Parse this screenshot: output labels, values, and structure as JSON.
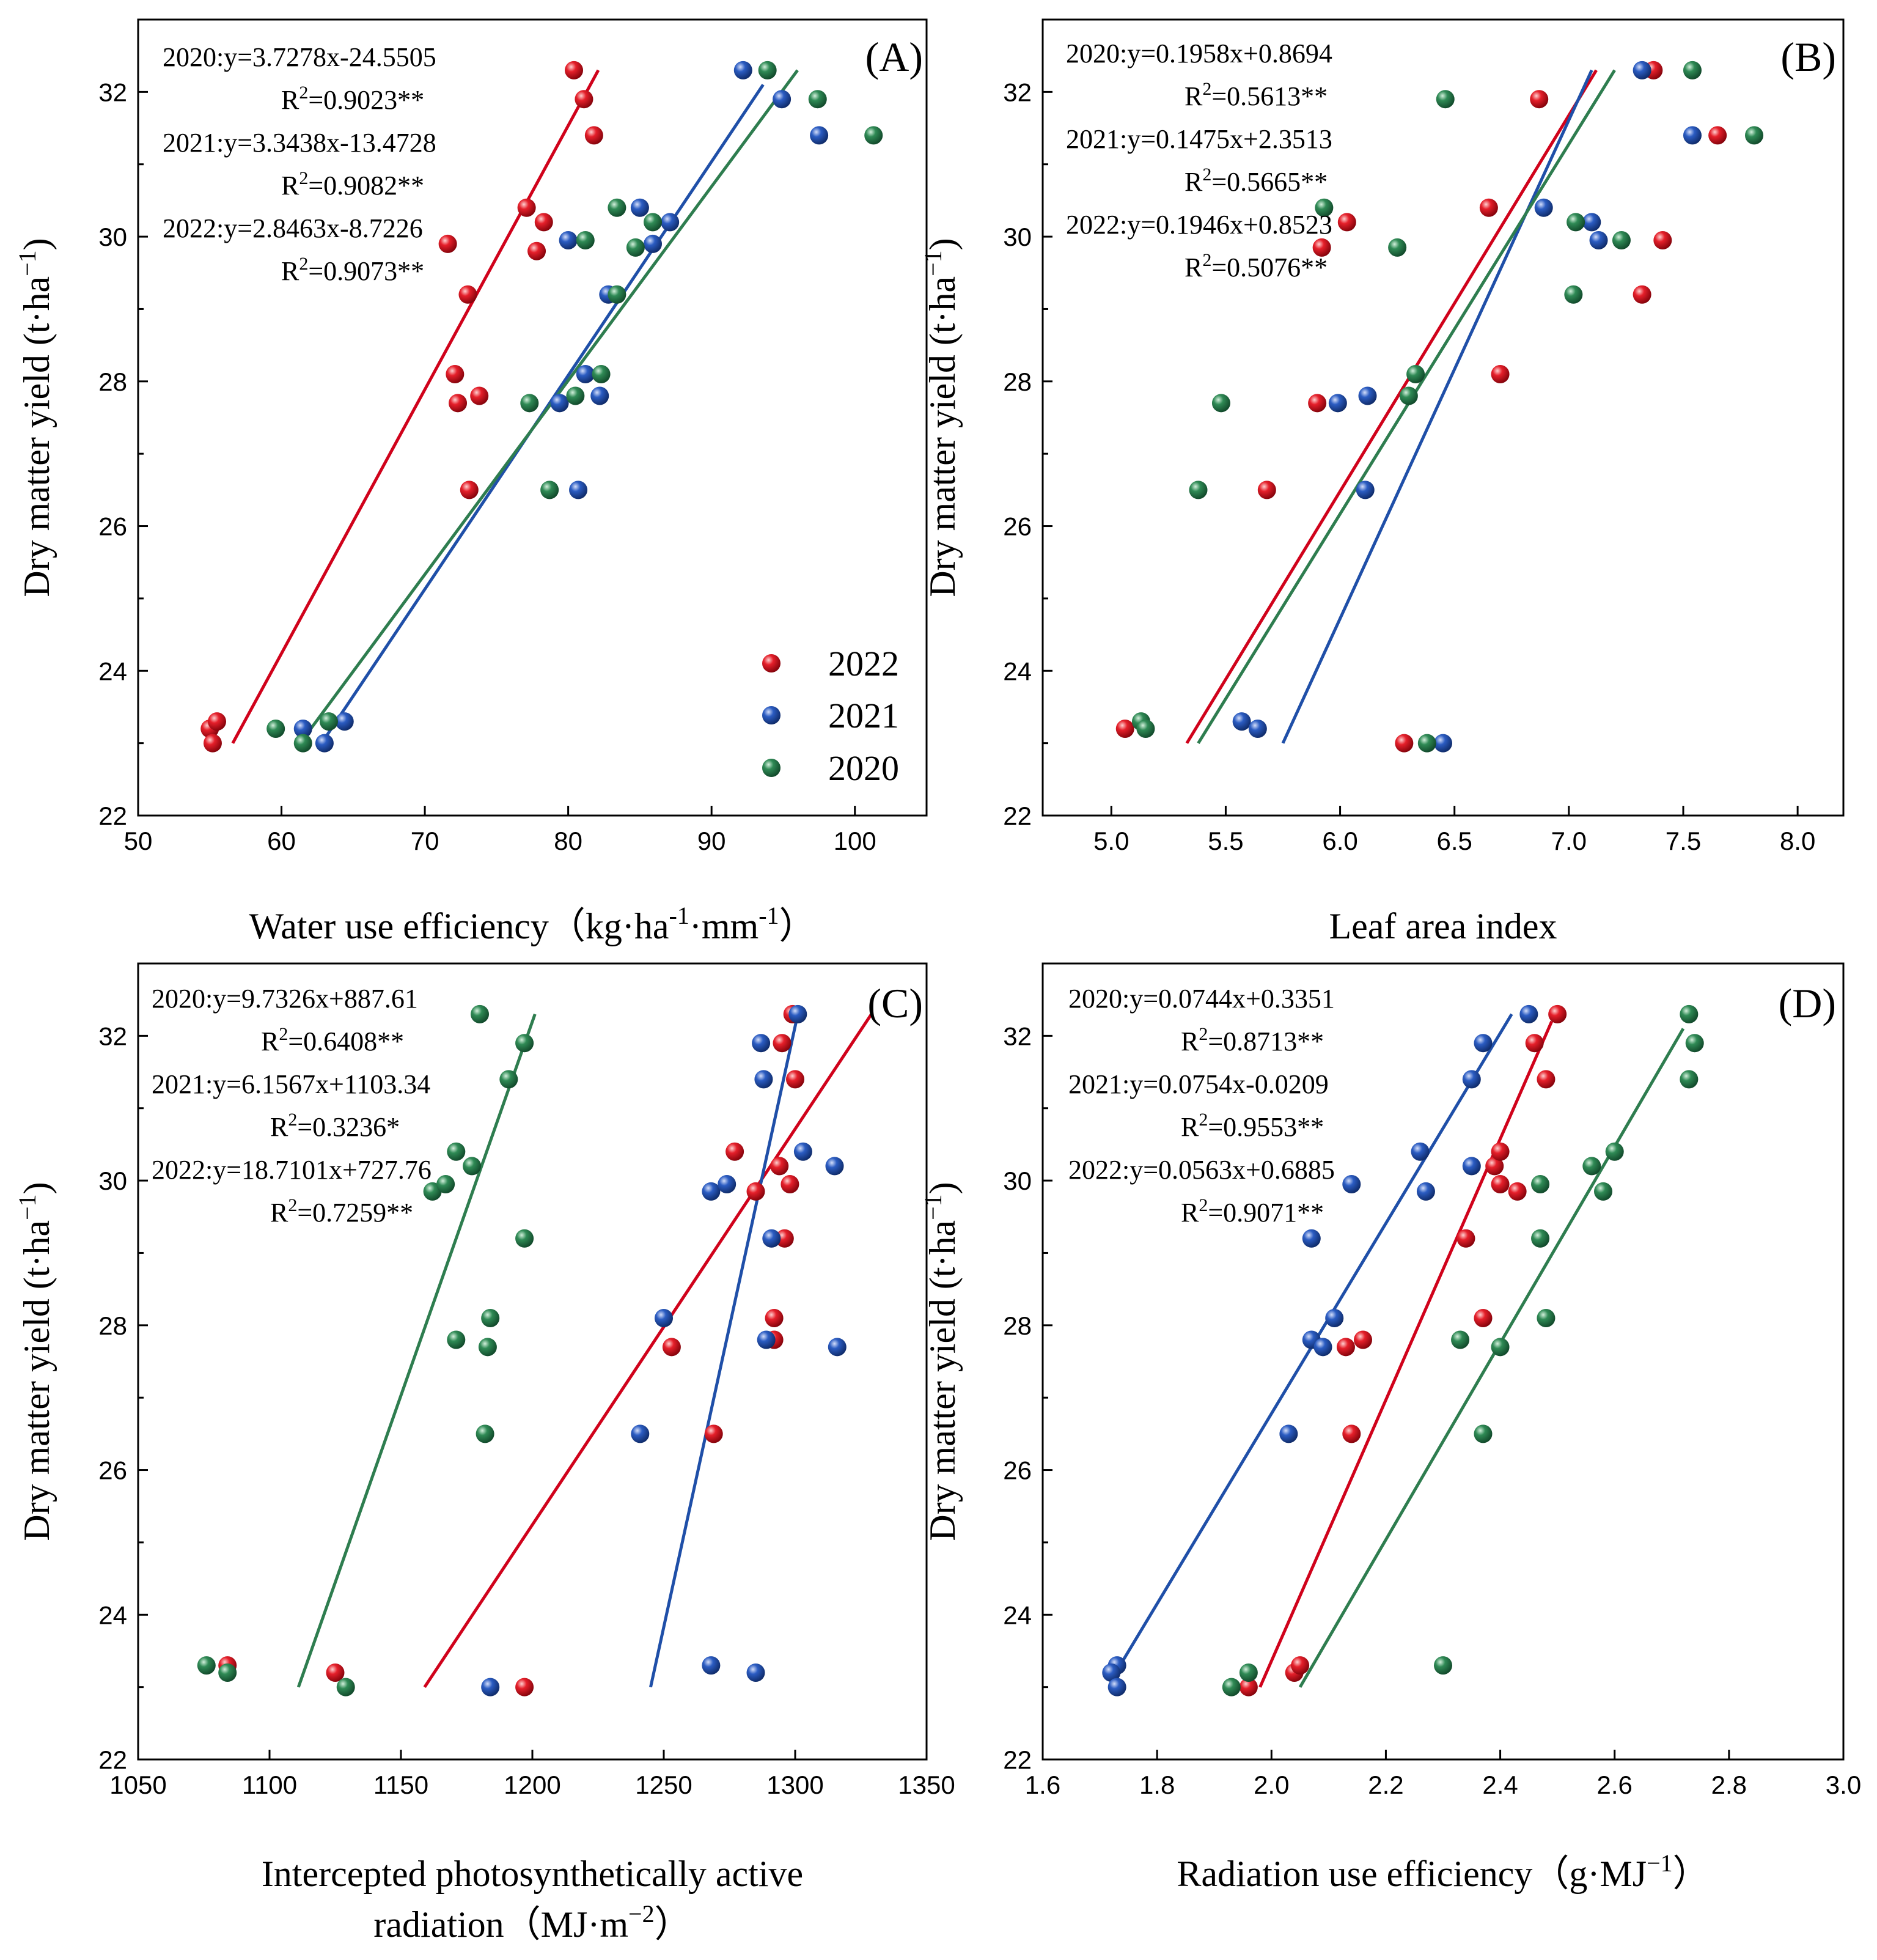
{
  "figure_title": "",
  "colors": {
    "2022": "#d0021b",
    "2021": "#1f4fa8",
    "2020": "#2e7d4f"
  },
  "legend": {
    "items": [
      "2022",
      "2021",
      "2020"
    ]
  },
  "y_axis_label": {
    "main": "Dry matter yield (t·ha",
    "sup": "−1",
    "close": ")"
  },
  "chart_data": [
    {
      "panel": "(A)",
      "type": "scatter",
      "xlabel_parts": [
        {
          "t": "Water use efficiency（kg·ha"
        },
        {
          "t": "-1",
          "sup": true
        },
        {
          "t": "·mm"
        },
        {
          "t": "-1",
          "sup": true
        },
        {
          "t": "）"
        }
      ],
      "xlim": [
        50,
        105
      ],
      "xticks": [
        50,
        60,
        70,
        80,
        90,
        100
      ],
      "ylim": [
        22,
        33
      ],
      "yticks": [
        22,
        24,
        26,
        28,
        30,
        32
      ],
      "equations": [
        {
          "text": "2020:y=3.7278x-24.5505",
          "r2": "=0.9023**"
        },
        {
          "text": "2021:y=3.3438x-13.4728",
          "r2": "=0.9082**"
        },
        {
          "text": "2022:y=2.8463x-8.7226",
          "r2": "=0.9073**"
        }
      ],
      "series": [
        {
          "name": "2022",
          "points": [
            [
              55,
              23.2
            ],
            [
              55.5,
              23.3
            ],
            [
              55.2,
              23.0
            ],
            [
              73.1,
              26.5
            ],
            [
              72.3,
              27.7
            ],
            [
              73.8,
              27.8
            ],
            [
              72.1,
              28.1
            ],
            [
              73,
              29.2
            ],
            [
              71.6,
              29.9
            ],
            [
              77.8,
              29.8
            ],
            [
              78.3,
              30.2
            ],
            [
              77.1,
              30.4
            ],
            [
              81.8,
              31.4
            ],
            [
              81.1,
              31.9
            ],
            [
              80.4,
              32.3
            ]
          ],
          "fit": [
            [
              56.6,
              23.0
            ],
            [
              82.1,
              32.3
            ]
          ]
        },
        {
          "name": "2021",
          "points": [
            [
              61.5,
              23.2
            ],
            [
              64.4,
              23.3
            ],
            [
              63,
              23.0
            ],
            [
              80.7,
              26.5
            ],
            [
              79.4,
              27.7
            ],
            [
              82.2,
              27.8
            ],
            [
              81.2,
              28.1
            ],
            [
              82.8,
              29.2
            ],
            [
              80,
              29.95
            ],
            [
              85.9,
              29.9
            ],
            [
              87.1,
              30.2
            ],
            [
              85,
              30.4
            ],
            [
              97.5,
              31.4
            ],
            [
              94.9,
              31.9
            ],
            [
              92.2,
              32.3
            ]
          ],
          "fit": [
            [
              62.8,
              23.0
            ],
            [
              93.6,
              32.1
            ]
          ]
        },
        {
          "name": "2020",
          "points": [
            [
              59.6,
              23.2
            ],
            [
              63.3,
              23.3
            ],
            [
              61.5,
              23.0
            ],
            [
              78.7,
              26.5
            ],
            [
              77.3,
              27.7
            ],
            [
              80.5,
              27.8
            ],
            [
              82.3,
              28.1
            ],
            [
              83.4,
              29.2
            ],
            [
              81.2,
              29.95
            ],
            [
              84.7,
              29.85
            ],
            [
              85.9,
              30.2
            ],
            [
              83.4,
              30.4
            ],
            [
              101.3,
              31.4
            ],
            [
              97.4,
              31.9
            ],
            [
              93.9,
              32.3
            ]
          ],
          "fit": [
            [
              61.3,
              23.0
            ],
            [
              96.0,
              32.3
            ]
          ]
        }
      ]
    },
    {
      "panel": "(B)",
      "type": "scatter",
      "xlabel_parts": [
        {
          "t": "Leaf area index"
        }
      ],
      "xlim": [
        4.7,
        8.2
      ],
      "xticks": [
        5.0,
        5.5,
        6.0,
        6.5,
        7.0,
        7.5,
        8.0
      ],
      "ylim": [
        22,
        33
      ],
      "yticks": [
        22,
        24,
        26,
        28,
        30,
        32
      ],
      "equations": [
        {
          "text": "2020:y=0.1958x+0.8694",
          "r2": "=0.5613**"
        },
        {
          "text": "2021:y=0.1475x+2.3513",
          "r2": "=0.5665**"
        },
        {
          "text": "2022:y=0.1946x+0.8523",
          "r2": "=0.5076**"
        }
      ],
      "series": [
        {
          "name": "2022",
          "points": [
            [
              5.06,
              23.2
            ],
            [
              6.28,
              23.0
            ],
            [
              5.68,
              26.5
            ],
            [
              5.9,
              27.7
            ],
            [
              6.7,
              28.1
            ],
            [
              5.92,
              29.85
            ],
            [
              6.03,
              30.2
            ],
            [
              6.65,
              30.4
            ],
            [
              7.32,
              29.2
            ],
            [
              7.41,
              29.95
            ],
            [
              6.87,
              31.9
            ],
            [
              7.65,
              31.4
            ],
            [
              7.37,
              32.3
            ]
          ],
          "fit": [
            [
              5.33,
              23.0
            ],
            [
              7.12,
              32.3
            ]
          ]
        },
        {
          "name": "2021",
          "points": [
            [
              5.57,
              23.3
            ],
            [
              5.64,
              23.2
            ],
            [
              6.45,
              23.0
            ],
            [
              6.11,
              26.5
            ],
            [
              5.99,
              27.7
            ],
            [
              6.12,
              27.8
            ],
            [
              6.89,
              30.4
            ],
            [
              7.1,
              30.2
            ],
            [
              7.13,
              29.95
            ],
            [
              7.54,
              31.4
            ],
            [
              7.32,
              32.3
            ]
          ],
          "fit": [
            [
              5.75,
              23.0
            ],
            [
              7.1,
              32.3
            ]
          ]
        },
        {
          "name": "2020",
          "points": [
            [
              5.13,
              23.3
            ],
            [
              5.15,
              23.2
            ],
            [
              6.38,
              23.0
            ],
            [
              5.38,
              26.5
            ],
            [
              5.48,
              27.7
            ],
            [
              6.33,
              28.1
            ],
            [
              6.3,
              27.8
            ],
            [
              5.93,
              30.4
            ],
            [
              6.25,
              29.85
            ],
            [
              7.02,
              29.2
            ],
            [
              7.03,
              30.2
            ],
            [
              7.23,
              29.95
            ],
            [
              6.46,
              31.9
            ],
            [
              7.54,
              32.3
            ],
            [
              7.81,
              31.4
            ]
          ],
          "fit": [
            [
              5.38,
              23.0
            ],
            [
              7.2,
              32.3
            ]
          ]
        }
      ]
    },
    {
      "panel": "(C)",
      "type": "scatter",
      "xlabel_parts": [
        {
          "t": "Intercepted photosynthetically active"
        }
      ],
      "xlabel_line2_parts": [
        {
          "t": "radiation（MJ·m"
        },
        {
          "t": "−2",
          "sup": true
        },
        {
          "t": "）"
        }
      ],
      "xlim": [
        1050,
        1350
      ],
      "xticks": [
        1050,
        1100,
        1150,
        1200,
        1250,
        1300,
        1350
      ],
      "ylim": [
        22,
        33
      ],
      "yticks": [
        22,
        24,
        26,
        28,
        30,
        32
      ],
      "equations": [
        {
          "text": "2020:y=9.7326x+887.61",
          "r2": "=0.6408**"
        },
        {
          "text": "2021:y=6.1567x+1103.34",
          "r2": "=0.3236*"
        },
        {
          "text": "2022:y=18.7101x+727.76",
          "r2": "=0.7259**"
        }
      ],
      "series": [
        {
          "name": "2022",
          "points": [
            [
              1084,
              23.3
            ],
            [
              1125,
              23.2
            ],
            [
              1197,
              23.0
            ],
            [
              1253,
              27.7
            ],
            [
              1269,
              26.5
            ],
            [
              1277,
              30.4
            ],
            [
              1285,
              29.85
            ],
            [
              1292,
              28.1
            ],
            [
              1292,
              27.8
            ],
            [
              1294,
              30.2
            ],
            [
              1296,
              29.2
            ],
            [
              1298,
              29.95
            ],
            [
              1295,
              31.9
            ],
            [
              1300,
              31.4
            ],
            [
              1299,
              32.3
            ]
          ],
          "fit": [
            [
              1159,
              23.0
            ],
            [
              1329,
              32.3
            ]
          ]
        },
        {
          "name": "2021",
          "points": [
            [
              1184,
              23.0
            ],
            [
              1268,
              23.3
            ],
            [
              1285,
              23.2
            ],
            [
              1241,
              26.5
            ],
            [
              1250,
              28.1
            ],
            [
              1289,
              27.8
            ],
            [
              1316,
              27.7
            ],
            [
              1268,
              29.85
            ],
            [
              1274,
              29.95
            ],
            [
              1291,
              29.2
            ],
            [
              1303,
              30.4
            ],
            [
              1315,
              30.2
            ],
            [
              1288,
              31.4
            ],
            [
              1287,
              31.9
            ],
            [
              1301,
              32.3
            ]
          ],
          "fit": [
            [
              1245,
              23.0
            ],
            [
              1301,
              32.3
            ]
          ]
        },
        {
          "name": "2020",
          "points": [
            [
              1076,
              23.3
            ],
            [
              1084,
              23.2
            ],
            [
              1129,
              23.0
            ],
            [
              1182,
              26.5
            ],
            [
              1171,
              27.8
            ],
            [
              1183,
              27.7
            ],
            [
              1184,
              28.1
            ],
            [
              1197,
              29.2
            ],
            [
              1162,
              29.85
            ],
            [
              1167,
              29.95
            ],
            [
              1177,
              30.2
            ],
            [
              1171,
              30.4
            ],
            [
              1191,
              31.4
            ],
            [
              1197,
              31.9
            ],
            [
              1180,
              32.3
            ]
          ],
          "fit": [
            [
              1111,
              23.0
            ],
            [
              1201,
              32.3
            ]
          ]
        }
      ]
    },
    {
      "panel": "(D)",
      "type": "scatter",
      "xlabel_parts": [
        {
          "t": "Radiation use efficiency（g·MJ"
        },
        {
          "t": "−1",
          "sup": true
        },
        {
          "t": "）"
        }
      ],
      "xlim": [
        1.6,
        3.0
      ],
      "xticks": [
        1.6,
        1.8,
        2.0,
        2.2,
        2.4,
        2.6,
        2.8,
        3.0
      ],
      "ylim": [
        22,
        33
      ],
      "yticks": [
        22,
        24,
        26,
        28,
        30,
        32
      ],
      "equations": [
        {
          "text": "2020:y=0.0744x+0.3351",
          "r2": "=0.8713**"
        },
        {
          "text": "2021:y=0.0754x-0.0209",
          "r2": "=0.9553**"
        },
        {
          "text": "2022:y=0.0563x+0.6885",
          "r2": "=0.9071**"
        }
      ],
      "series": [
        {
          "name": "2022",
          "points": [
            [
              2.04,
              23.2
            ],
            [
              2.05,
              23.3
            ],
            [
              1.96,
              23.0
            ],
            [
              2.14,
              26.5
            ],
            [
              2.13,
              27.7
            ],
            [
              2.16,
              27.8
            ],
            [
              2.37,
              28.1
            ],
            [
              2.34,
              29.2
            ],
            [
              2.4,
              29.95
            ],
            [
              2.43,
              29.85
            ],
            [
              2.39,
              30.2
            ],
            [
              2.4,
              30.4
            ],
            [
              2.48,
              31.4
            ],
            [
              2.46,
              31.9
            ],
            [
              2.5,
              32.3
            ]
          ],
          "fit": [
            [
              1.98,
              23.0
            ],
            [
              2.49,
              32.2
            ]
          ]
        },
        {
          "name": "2021",
          "points": [
            [
              1.73,
              23.3
            ],
            [
              1.72,
              23.2
            ],
            [
              1.73,
              23.0
            ],
            [
              2.03,
              26.5
            ],
            [
              2.07,
              27.8
            ],
            [
              2.09,
              27.7
            ],
            [
              2.11,
              28.1
            ],
            [
              2.07,
              29.2
            ],
            [
              2.27,
              29.85
            ],
            [
              2.14,
              29.95
            ],
            [
              2.35,
              30.2
            ],
            [
              2.26,
              30.4
            ],
            [
              2.35,
              31.4
            ],
            [
              2.37,
              31.9
            ],
            [
              2.45,
              32.3
            ]
          ],
          "fit": [
            [
              1.72,
              23.1
            ],
            [
              2.42,
              32.3
            ]
          ]
        },
        {
          "name": "2020",
          "points": [
            [
              1.96,
              23.2
            ],
            [
              2.3,
              23.3
            ],
            [
              1.93,
              23.0
            ],
            [
              2.37,
              26.5
            ],
            [
              2.33,
              27.8
            ],
            [
              2.4,
              27.7
            ],
            [
              2.48,
              28.1
            ],
            [
              2.47,
              29.2
            ],
            [
              2.47,
              29.95
            ],
            [
              2.58,
              29.85
            ],
            [
              2.56,
              30.2
            ],
            [
              2.6,
              30.4
            ],
            [
              2.73,
              31.4
            ],
            [
              2.74,
              31.9
            ],
            [
              2.73,
              32.3
            ]
          ],
          "fit": [
            [
              2.05,
              23.0
            ],
            [
              2.72,
              32.1
            ]
          ]
        }
      ]
    }
  ]
}
